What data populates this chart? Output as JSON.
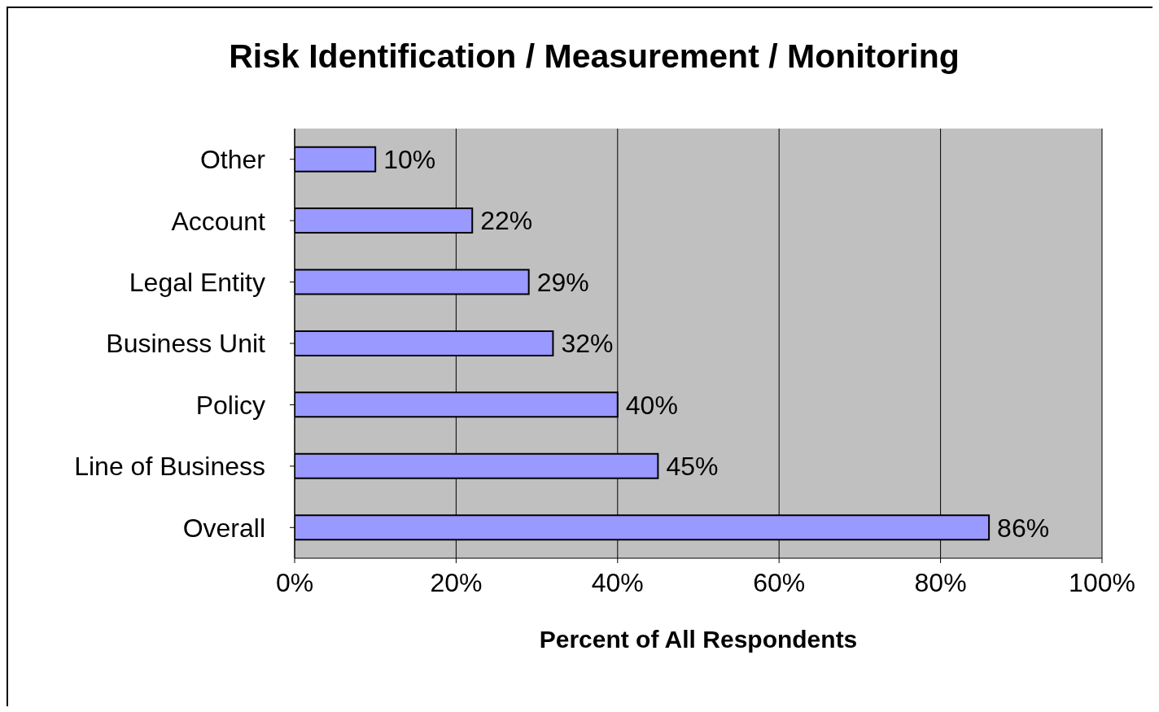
{
  "chart_data": {
    "type": "bar",
    "orientation": "horizontal",
    "title": "Risk Identification / Measurement / Monitoring",
    "xlabel": "Percent of All Respondents",
    "categories": [
      "Other",
      "Account",
      "Legal Entity",
      "Business Unit",
      "Policy",
      "Line of Business",
      "Overall"
    ],
    "values": [
      10,
      22,
      29,
      32,
      40,
      45,
      86
    ],
    "value_labels": [
      "10%",
      "22%",
      "29%",
      "32%",
      "40%",
      "45%",
      "86%"
    ],
    "color": "#9999ff",
    "xlim": [
      0,
      100
    ],
    "xticks": [
      {
        "value": 0,
        "label": "0%"
      },
      {
        "value": 20,
        "label": "20%"
      },
      {
        "value": 40,
        "label": "40%"
      },
      {
        "value": 60,
        "label": "60%"
      },
      {
        "value": 80,
        "label": "80%"
      },
      {
        "value": 100,
        "label": "100%"
      }
    ],
    "grid": "x"
  }
}
